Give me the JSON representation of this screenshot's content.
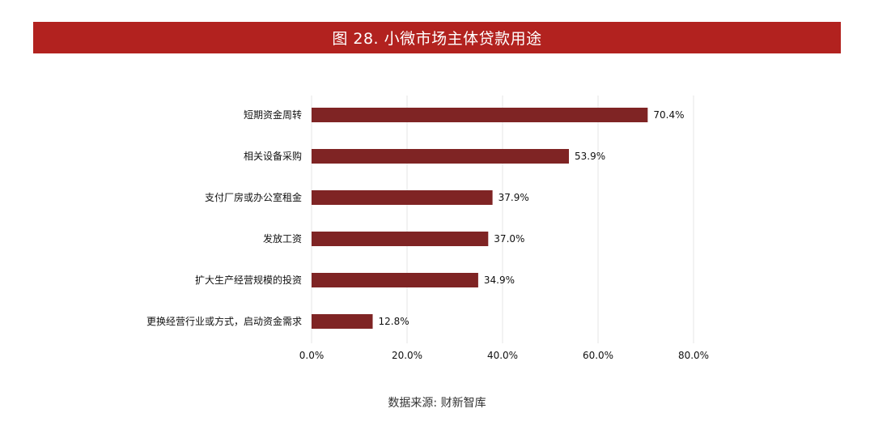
{
  "title": "图 28. 小微市场主体贷款用途",
  "source": "数据来源: 财新智库",
  "colors": {
    "title_bar": "#b2221f",
    "bar": "#7f2424",
    "grid": "#e6e6e6"
  },
  "chart_data": {
    "type": "bar",
    "orientation": "horizontal",
    "categories": [
      "短期资金周转",
      "相关设备采购",
      "支付厂房或办公室租金",
      "发放工资",
      "扩大生产经营规模的投资",
      "更换经营行业或方式，启动资金需求"
    ],
    "values": [
      70.4,
      53.9,
      37.9,
      37.0,
      34.9,
      12.8
    ],
    "value_labels": [
      "70.4%",
      "53.9%",
      "37.9%",
      "37.0%",
      "34.9%",
      "12.8%"
    ],
    "xlim": [
      0,
      80
    ],
    "xticks": [
      0,
      20,
      40,
      60,
      80
    ],
    "xtick_labels": [
      "0.0%",
      "20.0%",
      "40.0%",
      "60.0%",
      "80.0%"
    ],
    "grid": "vertical",
    "legend": "none"
  }
}
